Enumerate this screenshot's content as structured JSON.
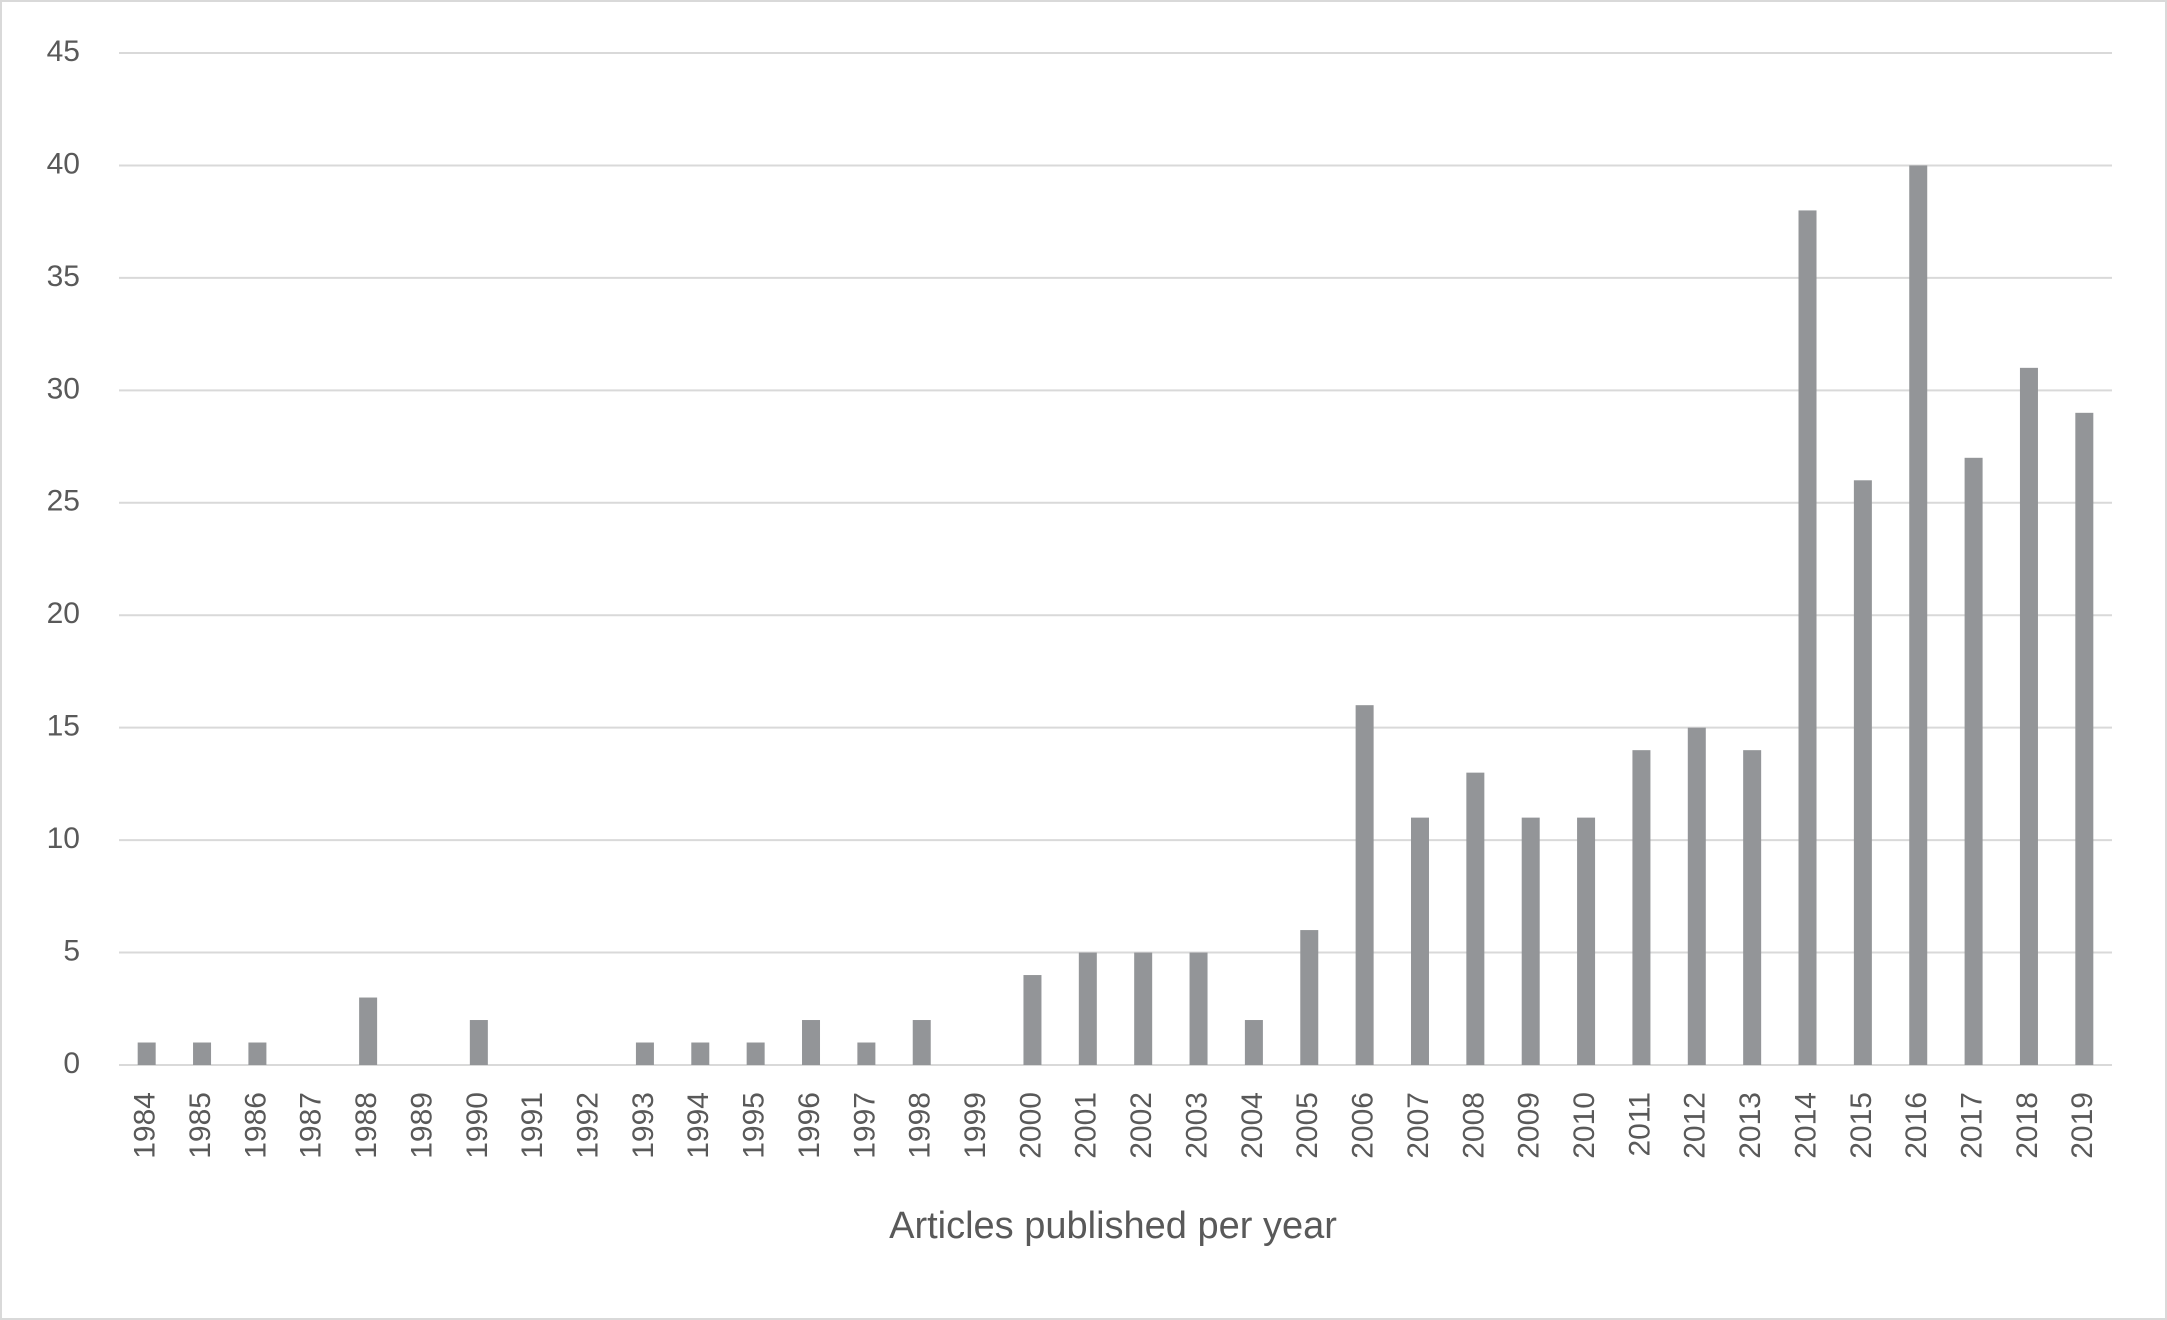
{
  "chart_data": {
    "type": "bar",
    "x_label": "Articles published per year",
    "categories": [
      "1984",
      "1985",
      "1986",
      "1987",
      "1988",
      "1989",
      "1990",
      "1991",
      "1992",
      "1993",
      "1994",
      "1995",
      "1996",
      "1997",
      "1998",
      "1999",
      "2000",
      "2001",
      "2002",
      "2003",
      "2004",
      "2005",
      "2006",
      "2007",
      "2008",
      "2009",
      "2010",
      "2011",
      "2012",
      "2013",
      "2014",
      "2015",
      "2016",
      "2017",
      "2018",
      "2019"
    ],
    "values": [
      1,
      1,
      1,
      0,
      3,
      0,
      2,
      0,
      0,
      1,
      1,
      1,
      2,
      1,
      2,
      0,
      4,
      5,
      5,
      5,
      2,
      6,
      16,
      11,
      13,
      11,
      11,
      14,
      15,
      14,
      38,
      26,
      40,
      27,
      31,
      29
    ],
    "color": "#939598",
    "ylim": [
      0,
      45
    ],
    "yticks": [
      0,
      5,
      10,
      15,
      20,
      25,
      30,
      35,
      40,
      45
    ],
    "grid": true
  }
}
